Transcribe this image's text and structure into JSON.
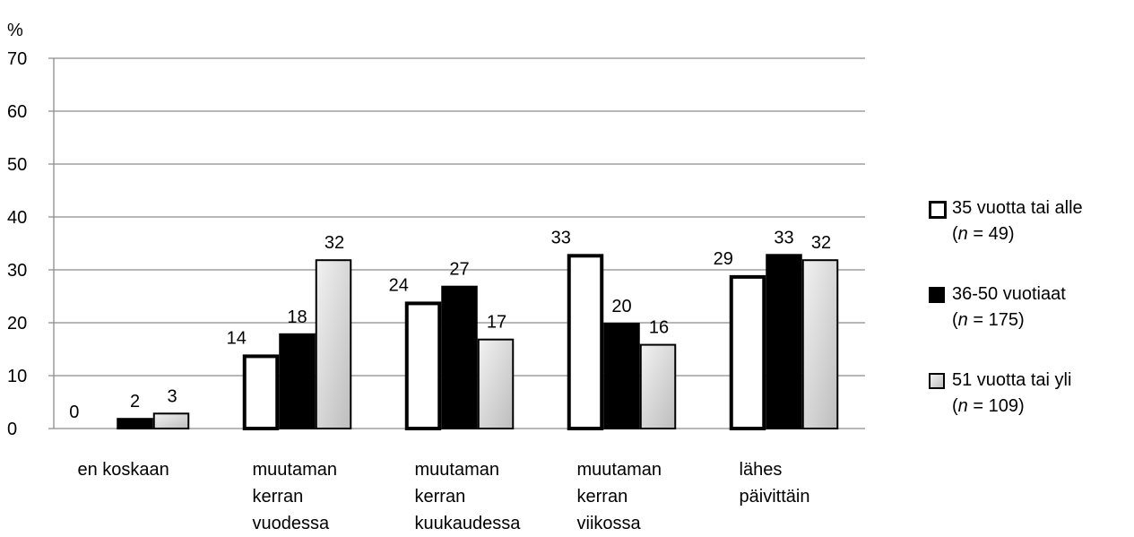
{
  "chart_data": {
    "type": "bar",
    "ylabel": "%",
    "ylim": [
      0,
      70
    ],
    "yticks": [
      "0",
      "10",
      "20",
      "30",
      "40",
      "50",
      "60",
      "70"
    ],
    "grid": true,
    "legend_position": "right",
    "categories": [
      [
        "en koskaan"
      ],
      [
        "muutaman",
        "kerran",
        "vuodessa"
      ],
      [
        "muutaman",
        "kerran",
        "kuukaudessa"
      ],
      [
        "muutaman",
        "kerran",
        "viikossa"
      ],
      [
        "lähes",
        "päivittäin"
      ]
    ],
    "series": [
      {
        "name": "35 vuotta tai alle",
        "n_label": "49",
        "values": [
          0,
          14,
          24,
          33,
          29
        ],
        "color": "#ffffff"
      },
      {
        "name": "36-50 vuotiaat",
        "n_label": "175",
        "values": [
          2,
          18,
          27,
          20,
          33
        ],
        "color": "#000000"
      },
      {
        "name": "51 vuotta tai yli",
        "n_label": "109",
        "values": [
          3,
          32,
          17,
          16,
          32
        ],
        "color": "#e0e0e0"
      }
    ]
  },
  "legend": {
    "n_prefix": "n",
    "n_equals": " = "
  }
}
